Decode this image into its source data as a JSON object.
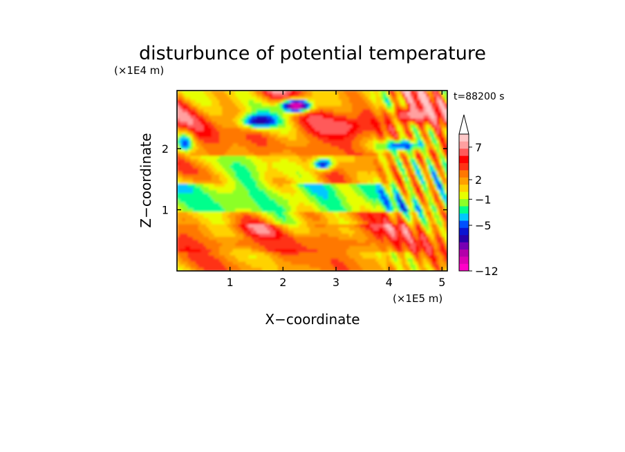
{
  "chart_data": {
    "type": "heatmap",
    "title": "disturbunce of potential temperature",
    "time_label": "t=88200 s",
    "xlabel": "X−coordinate",
    "ylabel": "Z−coordinate",
    "x_unit": "(×1E5 m)",
    "y_unit": "(×1E4 m)",
    "xlim": [
      0,
      5.1
    ],
    "ylim": [
      0,
      2.95
    ],
    "xticks": [
      1,
      2,
      3,
      4,
      5
    ],
    "xtick_labels": [
      "1",
      "2",
      "3",
      "4",
      "5"
    ],
    "yticks": [
      1,
      2
    ],
    "ytick_labels": [
      "1",
      "2"
    ],
    "colorbar": {
      "colors": [
        "#ff00c8",
        "#dc00b4",
        "#b400aa",
        "#7800b4",
        "#2800aa",
        "#0a14d2",
        "#0050ff",
        "#00c8ff",
        "#00ff8c",
        "#8cff28",
        "#e6ff00",
        "#ffd200",
        "#ffa000",
        "#ff7800",
        "#ff3214",
        "#ff0000",
        "#ff5a5a",
        "#ffa0a0",
        "#ffc8c8"
      ],
      "levels": [
        -12,
        -11,
        -10,
        -9,
        -8,
        -7,
        -6,
        -5,
        -4,
        -3,
        -2,
        -1,
        0,
        1,
        2,
        3,
        4,
        5,
        6,
        7,
        8,
        9
      ],
      "labels": [
        {
          "value": 7,
          "text": "7"
        },
        {
          "value": 2,
          "text": "2"
        },
        {
          "value": -1,
          "text": "−1"
        },
        {
          "value": -5,
          "text": "−5"
        },
        {
          "value": -12,
          "text": "−12"
        }
      ],
      "extend": "max"
    },
    "field_features": [
      {
        "x": 2.25,
        "z": 2.7,
        "value": -11.5,
        "sx": 0.32,
        "sz": 0.12,
        "note": "magenta core"
      },
      {
        "x": 1.55,
        "z": 2.45,
        "value": -8,
        "sx": 0.35,
        "sz": 0.12
      },
      {
        "x": 2.75,
        "z": 1.75,
        "value": -7,
        "sx": 0.2,
        "sz": 0.1
      },
      {
        "x": 0.15,
        "z": 2.1,
        "value": -6,
        "sx": 0.15,
        "sz": 0.15
      },
      {
        "x": 4.25,
        "z": 2.05,
        "value": -6,
        "sx": 0.45,
        "sz": 0.1
      },
      {
        "x": 3.0,
        "z": 2.35,
        "value": 5,
        "sx": 0.55,
        "sz": 0.18
      },
      {
        "x": 4.5,
        "z": 2.55,
        "value": 6,
        "sx": 0.45,
        "sz": 0.15
      },
      {
        "x": 1.2,
        "z": 1.15,
        "value": -3,
        "sx": 1.5,
        "sz": 0.2
      },
      {
        "x": 2.2,
        "z": 0.45,
        "value": 2,
        "sx": 1.9,
        "sz": 0.12
      }
    ]
  }
}
